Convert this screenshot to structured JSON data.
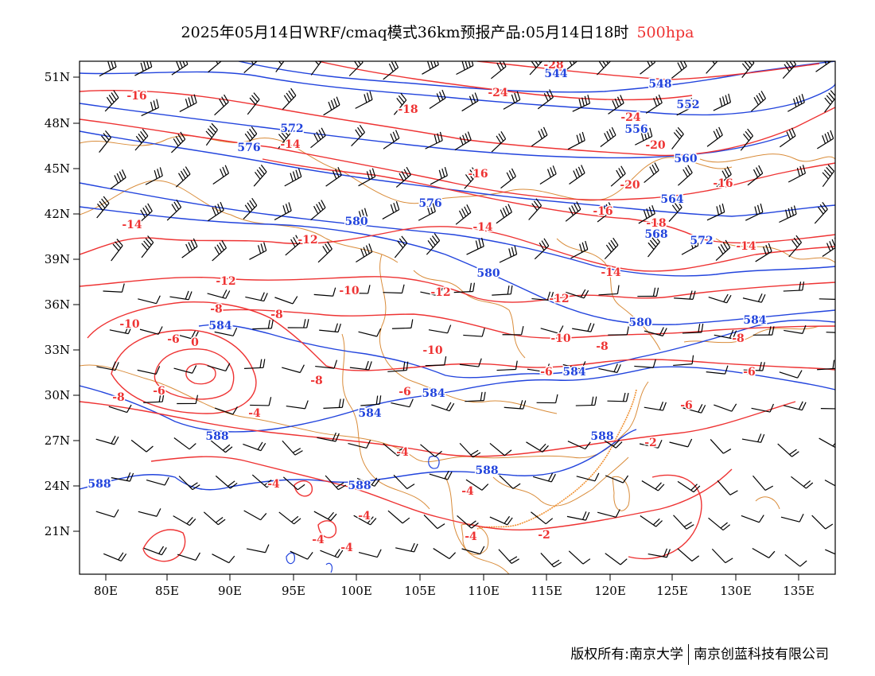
{
  "title": {
    "main": "2025年05月14日WRF/cmaq模式36km预报产品:05月14日18时",
    "level": "500hpa"
  },
  "footer": {
    "left": "版权所有:南京大学",
    "right": "南京创蓝科技有限公司"
  },
  "map": {
    "lon_labels": [
      "80E",
      "85E",
      "90E",
      "95E",
      "100E",
      "105E",
      "110E",
      "115E",
      "120E",
      "125E",
      "130E",
      "135E"
    ],
    "lat_labels": [
      "51N",
      "48N",
      "45N",
      "42N",
      "39N",
      "36N",
      "33N",
      "30N",
      "27N",
      "24N",
      "21N"
    ],
    "colors": {
      "height": "#2244dd",
      "temperature": "#ee3333",
      "border": "#d98c3a",
      "wind": "#000000"
    },
    "height_labels": [
      "544",
      "548",
      "552",
      "556",
      "560",
      "564",
      "568",
      "572",
      "572",
      "576",
      "576",
      "580",
      "580",
      "580",
      "584",
      "584",
      "584",
      "584",
      "584",
      "588",
      "588",
      "588",
      "588",
      "588"
    ],
    "temperature_labels": [
      "-28",
      "-24",
      "-24",
      "-20",
      "-20",
      "-18",
      "-18",
      "-16",
      "-16",
      "-16",
      "-16",
      "-14",
      "-14",
      "-14",
      "-14",
      "-14",
      "-12",
      "-12",
      "-12",
      "-12",
      "-10",
      "-10",
      "-10",
      "-10",
      "-8",
      "-8",
      "-8",
      "-8",
      "-8",
      "-8",
      "-6",
      "-6",
      "-6",
      "-6",
      "-6",
      "-6",
      "-4",
      "-4",
      "-4",
      "-4",
      "-4",
      "-4",
      "-4",
      "-4",
      "-2",
      "-2",
      "0"
    ]
  }
}
